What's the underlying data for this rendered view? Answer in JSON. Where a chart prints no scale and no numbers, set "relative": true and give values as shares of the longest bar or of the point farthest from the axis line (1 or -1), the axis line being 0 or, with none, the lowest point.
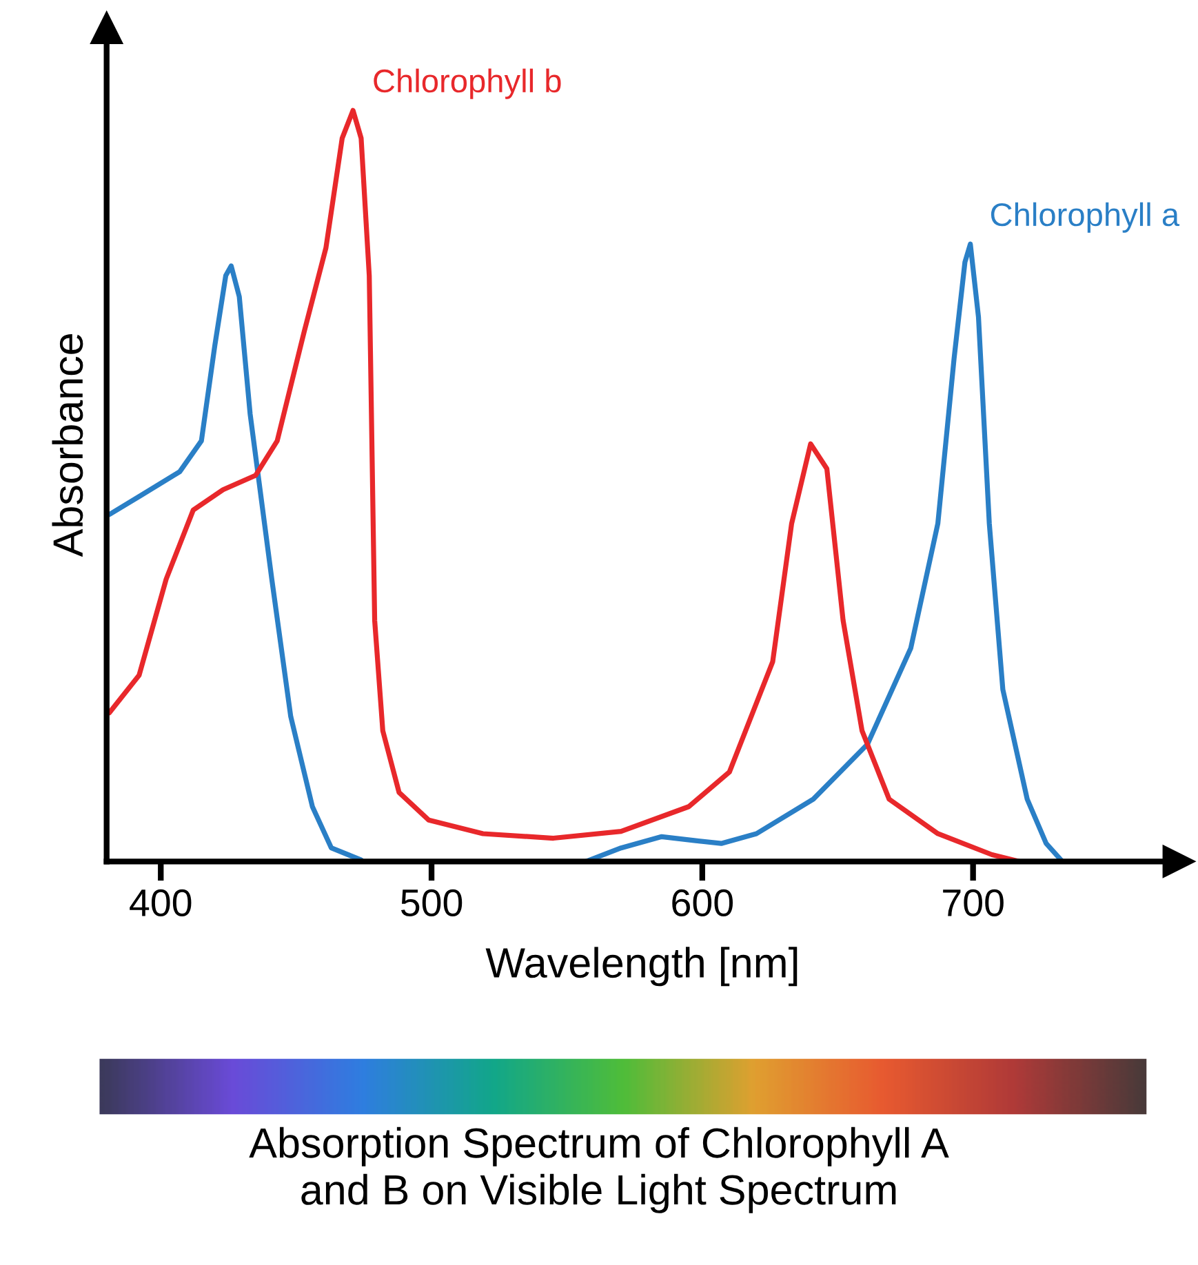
{
  "chart_data": {
    "type": "line",
    "xlabel": "Wavelength [nm]",
    "ylabel": "Absorbance",
    "relative": true,
    "xlim": [
      380,
      776
    ],
    "xticks": [
      400,
      500,
      600,
      700
    ],
    "grid": false,
    "legend": false,
    "marker": "none",
    "line_style": "solid",
    "series": [
      {
        "name": "Chlorophyll a",
        "color": "#2a7fc6",
        "x": [
          381,
          392,
          407,
          415,
          420,
          424,
          426,
          429,
          433,
          441,
          448,
          456,
          463,
          474,
          515,
          557,
          570,
          585,
          597,
          607,
          620,
          641,
          661,
          677,
          687,
          693,
          697,
          699,
          702,
          706,
          711,
          720,
          727,
          733
        ],
        "values": [
          0.462,
          0.486,
          0.519,
          0.56,
          0.688,
          0.78,
          0.793,
          0.752,
          0.596,
          0.376,
          0.193,
          0.073,
          0.018,
          0.002,
          null,
          0.0,
          0.018,
          0.033,
          0.028,
          0.024,
          0.037,
          0.083,
          0.156,
          0.284,
          0.45,
          0.67,
          0.798,
          0.822,
          0.725,
          0.45,
          0.229,
          0.083,
          0.024,
          0.0
        ]
      },
      {
        "name": "Chlorophyll b",
        "color": "#e8282b",
        "x": [
          381,
          392,
          402,
          412,
          423,
          435,
          443,
          453,
          461,
          467,
          471,
          474,
          477,
          479,
          482,
          488,
          499,
          519,
          545,
          570,
          595,
          610,
          626,
          633,
          640,
          646,
          652,
          659,
          669,
          687,
          707,
          717
        ],
        "values": [
          0.198,
          0.248,
          0.376,
          0.468,
          0.495,
          0.514,
          0.56,
          0.706,
          0.817,
          0.963,
          1.0,
          0.963,
          0.78,
          0.321,
          0.174,
          0.092,
          0.055,
          0.037,
          0.031,
          0.04,
          0.073,
          0.119,
          0.266,
          0.45,
          0.556,
          0.523,
          0.321,
          0.174,
          0.083,
          0.037,
          0.009,
          0.0
        ]
      }
    ],
    "annotations": [
      "Absorption Spectrum of Chlorophyll A\nand B on Visible Light Spectrum"
    ]
  }
}
